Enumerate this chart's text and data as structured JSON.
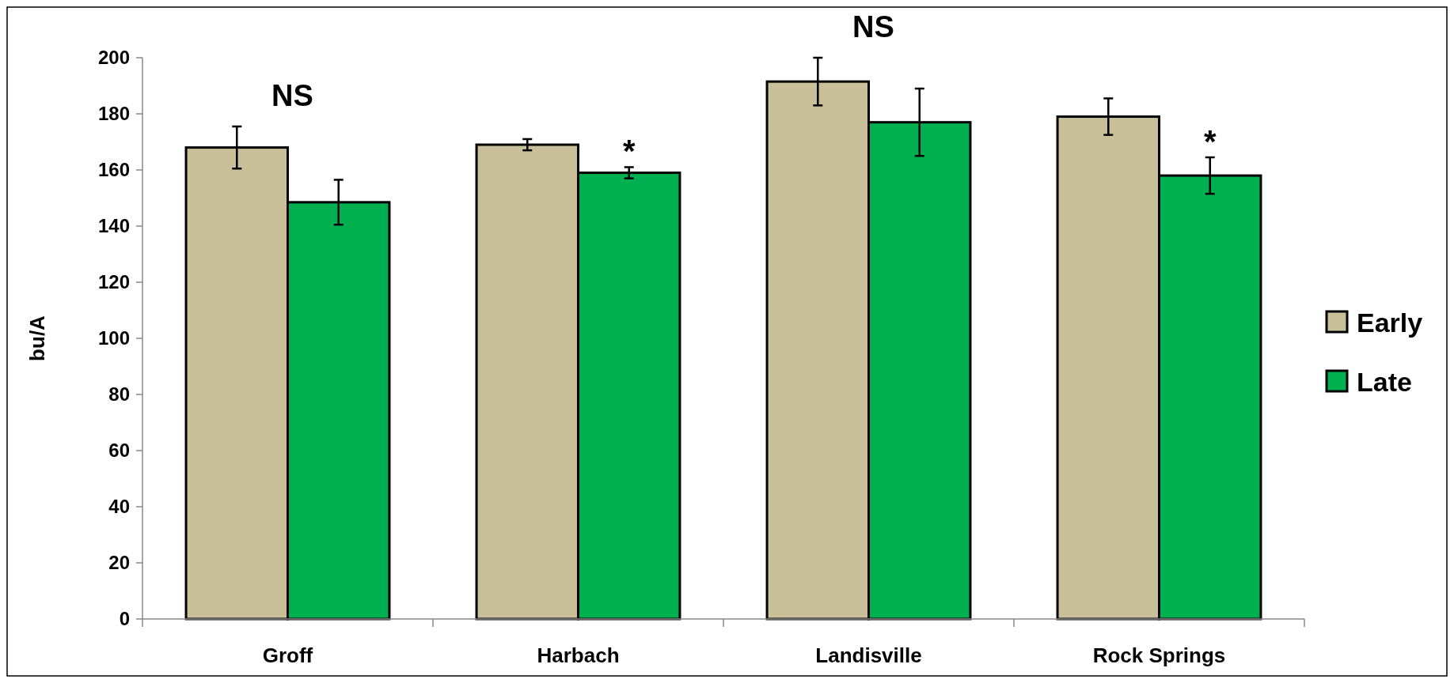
{
  "chart_data": {
    "type": "bar",
    "ylabel": "bu/A",
    "categories": [
      "Groff",
      "Harbach",
      "Landisville",
      "Rock Springs"
    ],
    "series": [
      {
        "name": "Early",
        "color": "#c9c09a",
        "values": [
          168,
          169,
          191.5,
          179
        ],
        "errors": [
          7.5,
          2,
          8.5,
          6.5
        ]
      },
      {
        "name": "Late",
        "color": "#00b050",
        "values": [
          148.5,
          159,
          177,
          158
        ],
        "errors": [
          8,
          2,
          12,
          6.5
        ]
      }
    ],
    "ylim": [
      0,
      200
    ],
    "yticks": [
      0,
      20,
      40,
      60,
      80,
      100,
      120,
      140,
      160,
      180,
      200
    ],
    "legend": "right",
    "grid": false,
    "annotations": [
      "NS",
      {
        "text": "*",
        "x": "Harbach",
        "y": 159
      },
      "NS",
      {
        "text": "*",
        "x": "Rock Springs",
        "y": 158
      }
    ]
  }
}
